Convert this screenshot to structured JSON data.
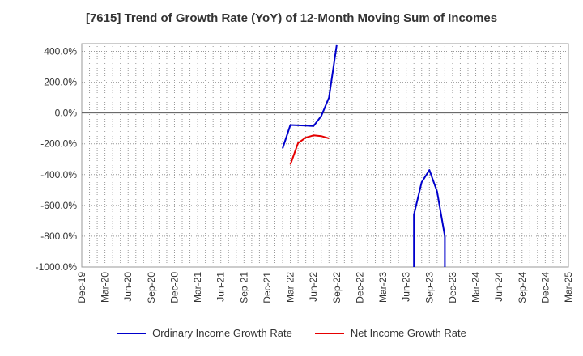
{
  "chart_data": {
    "type": "line",
    "title": "[7615]  Trend of Growth Rate (YoY) of 12-Month Moving Sum of Incomes",
    "xlabel": "",
    "ylabel": "",
    "ylim": [
      -1000,
      450
    ],
    "y_ticks": [
      "400.0%",
      "200.0%",
      "0.0%",
      "-200.0%",
      "-400.0%",
      "-600.0%",
      "-800.0%",
      "-1000.0%"
    ],
    "y_tick_values": [
      400,
      200,
      0,
      -200,
      -400,
      -600,
      -800,
      -1000
    ],
    "x_ticks": [
      "Dec-19",
      "Mar-20",
      "Jun-20",
      "Sep-20",
      "Dec-20",
      "Mar-21",
      "Jun-21",
      "Sep-21",
      "Dec-21",
      "Mar-22",
      "Jun-22",
      "Sep-22",
      "Dec-22",
      "Mar-23",
      "Jun-23",
      "Sep-23",
      "Dec-23",
      "Mar-24",
      "Jun-24",
      "Sep-24",
      "Dec-24",
      "Mar-25"
    ],
    "grid": true,
    "legend_position": "bottom",
    "series": [
      {
        "name": "Ordinary Income Growth Rate",
        "color": "#0000cc",
        "segments": [
          [
            [
              "Feb-22",
              -230
            ],
            [
              "Mar-22",
              -78
            ],
            [
              "Apr-22",
              -80
            ],
            [
              "May-22",
              -82
            ],
            [
              "Jun-22",
              -85
            ],
            [
              "Jul-22",
              -20
            ],
            [
              "Aug-22",
              100
            ],
            [
              "Sep-22",
              440
            ]
          ],
          [
            [
              "Jul-23",
              -1000
            ],
            [
              "Jul-23",
              -660
            ],
            [
              "Aug-23",
              -450
            ],
            [
              "Sep-23",
              -370
            ],
            [
              "Oct-23",
              -510
            ],
            [
              "Nov-23",
              -800
            ],
            [
              "Nov-23",
              -1000
            ]
          ]
        ]
      },
      {
        "name": "Net Income Growth Rate",
        "color": "#e60000",
        "segments": [
          [
            [
              "Mar-22",
              -335
            ],
            [
              "Apr-22",
              -195
            ],
            [
              "May-22",
              -160
            ],
            [
              "Jun-22",
              -145
            ],
            [
              "Jul-22",
              -150
            ],
            [
              "Aug-22",
              -165
            ]
          ]
        ]
      }
    ]
  }
}
